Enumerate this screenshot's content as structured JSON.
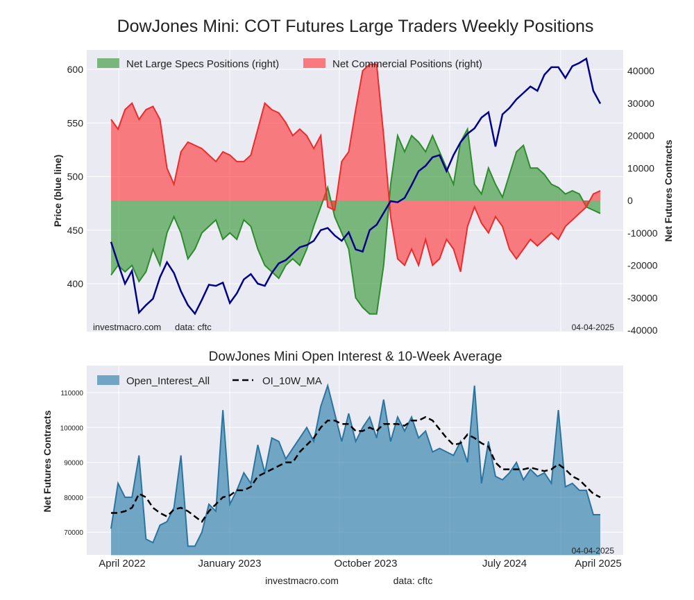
{
  "chart_data": [
    {
      "type": "area",
      "title": "DowJones Mini: COT Futures Large Traders Weekly Positions",
      "sampling": "approx. biweekly, April 2022 to April 2025",
      "ylabel": "Price (blue line)",
      "ylabel_right": "Net Futures Contracts",
      "ylim": [
        362,
        618
      ],
      "ylim_right": [
        -40000,
        46000
      ],
      "yticks": [
        "600",
        "550",
        "500",
        "450",
        "400"
      ],
      "yticks_right": [
        "40000",
        "30000",
        "20000",
        "10000",
        "0",
        "-10000",
        "-20000",
        "-30000",
        "-40000"
      ],
      "legend": [
        "Net Large Specs Positions (right)",
        "Net Commercial Positions (right)"
      ],
      "legend_position": "top-left",
      "grid": true,
      "annotations": {
        "source": "investmacro.com",
        "data": "data: cftc",
        "date": "04-04-2025"
      },
      "series": [
        {
          "name": "Price",
          "axis": "left",
          "color": "#00008b",
          "values": [
            439,
            419,
            400,
            412,
            373,
            380,
            386,
            406,
            420,
            410,
            393,
            380,
            372,
            385,
            399,
            398,
            401,
            382,
            391,
            404,
            409,
            400,
            398,
            410,
            419,
            422,
            428,
            434,
            436,
            440,
            450,
            452,
            445,
            440,
            448,
            432,
            430,
            450,
            455,
            466,
            477,
            476,
            480,
            492,
            505,
            510,
            518,
            520,
            505,
            520,
            532,
            540,
            545,
            555,
            560,
            528,
            558,
            564,
            572,
            578,
            584,
            580,
            595,
            602,
            602,
            592,
            603,
            606,
            610,
            580,
            568
          ]
        },
        {
          "name": "Net Large Specs Positions (right)",
          "axis": "right",
          "color": "#3a9a3a",
          "values": [
            -23000,
            -20000,
            -22000,
            -20000,
            -25000,
            -22000,
            -15000,
            -20000,
            -10000,
            -5000,
            -10000,
            -18000,
            -15000,
            -10000,
            -8000,
            -6000,
            -12000,
            -10000,
            -12000,
            -6000,
            -8000,
            -15000,
            -20000,
            -22000,
            -24000,
            -20000,
            -18000,
            -20000,
            -15000,
            -8000,
            -2000,
            4000,
            -5000,
            -10000,
            -15000,
            -30000,
            -33000,
            -35000,
            -35000,
            -20000,
            5000,
            20000,
            15000,
            20000,
            18000,
            15000,
            20000,
            15000,
            10000,
            5000,
            18000,
            22000,
            5000,
            2000,
            10000,
            5000,
            1000,
            8000,
            15000,
            17000,
            10000,
            10000,
            8000,
            5000,
            4000,
            2000,
            3000,
            2000,
            -2000,
            -3000,
            -4000
          ]
        },
        {
          "name": "Net Commercial Positions (right)",
          "axis": "right",
          "color": "#f03030",
          "values": [
            25000,
            22000,
            28000,
            30000,
            25000,
            28000,
            29000,
            25000,
            10000,
            5000,
            15000,
            18000,
            17000,
            16000,
            14000,
            12000,
            15000,
            14000,
            12000,
            12000,
            14000,
            22000,
            30000,
            28000,
            27000,
            24000,
            20000,
            22000,
            20000,
            16000,
            20000,
            -2000,
            -3000,
            12000,
            15000,
            28000,
            40000,
            42000,
            42000,
            20000,
            -5000,
            -18000,
            -20000,
            -15000,
            -20000,
            -12000,
            -20000,
            -18000,
            -12000,
            -15000,
            -22000,
            -8000,
            -2000,
            -7000,
            -10000,
            -5000,
            -8000,
            -15000,
            -18000,
            -15000,
            -12000,
            -14000,
            -12000,
            -10000,
            -12000,
            -8000,
            -6000,
            -4000,
            -2000,
            2000,
            3000
          ]
        }
      ]
    },
    {
      "type": "area",
      "title": "DowJones Mini Open Interest & 10-Week Average",
      "ylabel": "Net Futures Contracts",
      "ylim": [
        63400,
        117700
      ],
      "yticks": [
        "110000",
        "100000",
        "90000",
        "80000",
        "70000"
      ],
      "xticks": [
        "April 2022",
        "January 2023",
        "October 2023",
        "July 2024",
        "April 2025"
      ],
      "legend": [
        "Open_Interest_All",
        "OI_10W_MA"
      ],
      "legend_position": "top-left",
      "grid": true,
      "annotations": {
        "date": "04-04-2025"
      },
      "series": [
        {
          "name": "Open_Interest_All",
          "color": "#2f7fab",
          "values": [
            71000,
            84000,
            80000,
            80000,
            92000,
            68000,
            67000,
            72000,
            73000,
            77000,
            92000,
            66000,
            66000,
            70000,
            78000,
            76000,
            105000,
            78000,
            82000,
            87000,
            84000,
            95000,
            87000,
            97000,
            96000,
            91000,
            94000,
            97000,
            100000,
            96000,
            106000,
            112000,
            104000,
            96000,
            104000,
            96000,
            100000,
            103000,
            97000,
            108000,
            96000,
            103000,
            99000,
            103000,
            97000,
            99000,
            93000,
            94000,
            93000,
            92000,
            96000,
            90000,
            112000,
            84000,
            96000,
            86000,
            85000,
            87000,
            90000,
            85000,
            88000,
            86000,
            87000,
            84000,
            105000,
            83000,
            84000,
            82000,
            82000,
            75000,
            75000
          ]
        },
        {
          "name": "OI_10W_MA",
          "color": "#000000",
          "values": [
            75500,
            75500,
            76000,
            77000,
            81000,
            80000,
            77000,
            75500,
            74500,
            76500,
            77000,
            76000,
            74500,
            73000,
            76000,
            78000,
            80000,
            80500,
            82000,
            82000,
            83000,
            86000,
            87000,
            88000,
            89000,
            90000,
            90000,
            93000,
            95000,
            97000,
            100000,
            102000,
            102000,
            101000,
            101000,
            99000,
            99000,
            100000,
            99000,
            101000,
            101000,
            101000,
            100500,
            102000,
            102000,
            103000,
            102000,
            99500,
            97000,
            95000,
            95500,
            98000,
            97000,
            95500,
            94500,
            90000,
            88000,
            88000,
            88000,
            88000,
            88500,
            88000,
            87500,
            88000,
            89500,
            88000,
            86000,
            85000,
            83000,
            81000,
            80000
          ]
        }
      ]
    }
  ],
  "footer": {
    "source": "investmacro.com",
    "data": "data: cftc"
  }
}
